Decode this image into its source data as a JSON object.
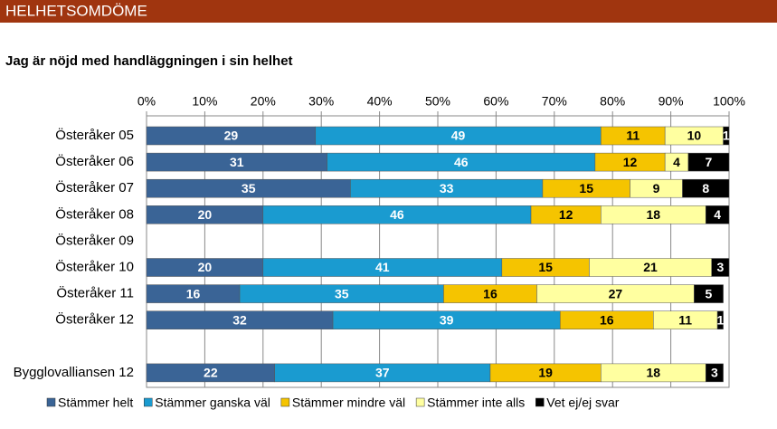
{
  "header": {
    "title": "HELHETSOMDÖME"
  },
  "chart_data": {
    "type": "stacked-barh",
    "title": "Jag är nöjd med handläggningen i sin helhet",
    "categories": [
      "Österåker 05",
      "Österåker 06",
      "Österåker 07",
      "Österåker 08",
      "Österåker 09",
      "Österåker 10",
      "Österåker 11",
      "Österåker 12",
      null,
      "Bygglovalliansen 12"
    ],
    "series": [
      {
        "name": "Stämmer helt",
        "color": "#3a6496",
        "values": [
          29,
          31,
          35,
          20,
          null,
          20,
          16,
          32,
          null,
          22
        ]
      },
      {
        "name": "Stämmer ganska väl",
        "color": "#1a9bd0",
        "values": [
          49,
          46,
          33,
          46,
          null,
          41,
          35,
          39,
          null,
          37
        ]
      },
      {
        "name": "Stämmer mindre väl",
        "color": "#f5c400",
        "values": [
          11,
          12,
          15,
          12,
          null,
          15,
          16,
          16,
          null,
          19
        ]
      },
      {
        "name": "Stämmer inte alls",
        "color": "#ffffa0",
        "values": [
          10,
          4,
          9,
          18,
          null,
          21,
          27,
          11,
          null,
          18
        ]
      },
      {
        "name": "Vet ej/ej svar",
        "color": "#000000",
        "values": [
          1,
          7,
          8,
          4,
          null,
          3,
          5,
          1,
          null,
          3
        ]
      }
    ],
    "xlim": [
      0,
      100
    ],
    "xticks": [
      {
        "value": 0,
        "label": "0%"
      },
      {
        "value": 10,
        "label": "10%"
      },
      {
        "value": 20,
        "label": "20%"
      },
      {
        "value": 30,
        "label": "30%"
      },
      {
        "value": 40,
        "label": "40%"
      },
      {
        "value": 50,
        "label": "50%"
      },
      {
        "value": 60,
        "label": "60%"
      },
      {
        "value": 70,
        "label": "70%"
      },
      {
        "value": 80,
        "label": "80%"
      },
      {
        "value": 90,
        "label": "90%"
      },
      {
        "value": 100,
        "label": "100%"
      }
    ],
    "grid": true,
    "legend": "bottom"
  }
}
